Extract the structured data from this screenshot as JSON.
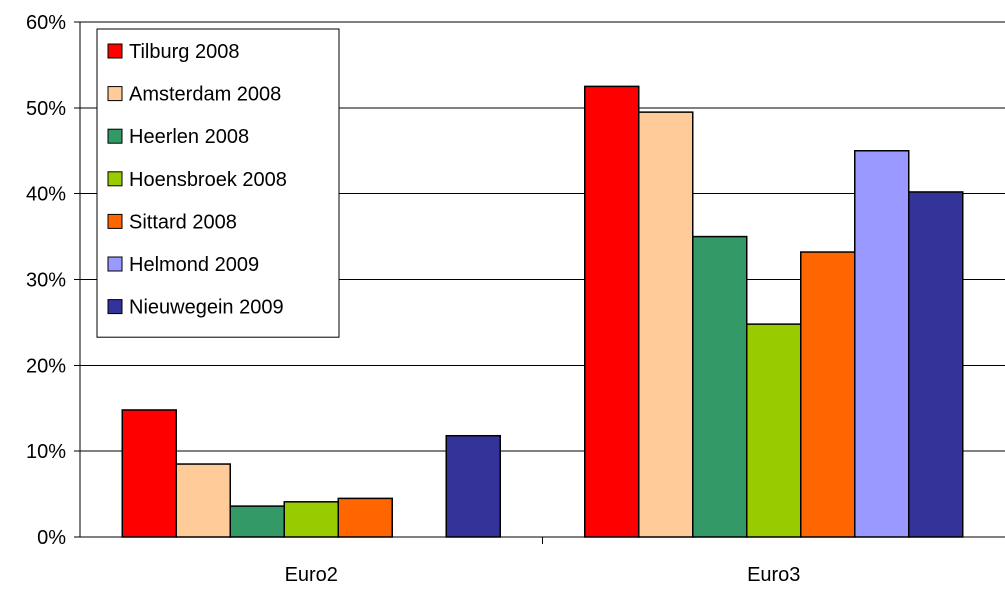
{
  "chart_data": {
    "type": "bar",
    "categories": [
      "Euro2",
      "Euro3"
    ],
    "series": [
      {
        "name": "Tilburg 2008",
        "color": "#FF0000",
        "values": [
          14.8,
          52.5
        ]
      },
      {
        "name": "Amsterdam 2008",
        "color": "#FFCC99",
        "values": [
          8.5,
          49.5
        ]
      },
      {
        "name": "Heerlen 2008",
        "color": "#339966",
        "values": [
          3.6,
          35.0
        ]
      },
      {
        "name": "Hoensbroek 2008",
        "color": "#99CC00",
        "values": [
          4.1,
          24.8
        ]
      },
      {
        "name": "Sittard 2008",
        "color": "#FF6600",
        "values": [
          4.5,
          33.2
        ]
      },
      {
        "name": "Helmond 2009",
        "color": "#9999FF",
        "values": [
          null,
          45.0
        ]
      },
      {
        "name": "Nieuwegein 2009",
        "color": "#333399",
        "values": [
          11.8,
          40.2
        ]
      }
    ],
    "ylim": [
      0,
      60
    ],
    "yticks": [
      0,
      10,
      20,
      30,
      40,
      50,
      60
    ],
    "ytick_labels": [
      "0%",
      "10%",
      "20%",
      "30%",
      "40%",
      "50%",
      "60%"
    ],
    "title": "",
    "xlabel": "",
    "ylabel": "",
    "grid": "horizontal",
    "legend_position": "top-left"
  }
}
